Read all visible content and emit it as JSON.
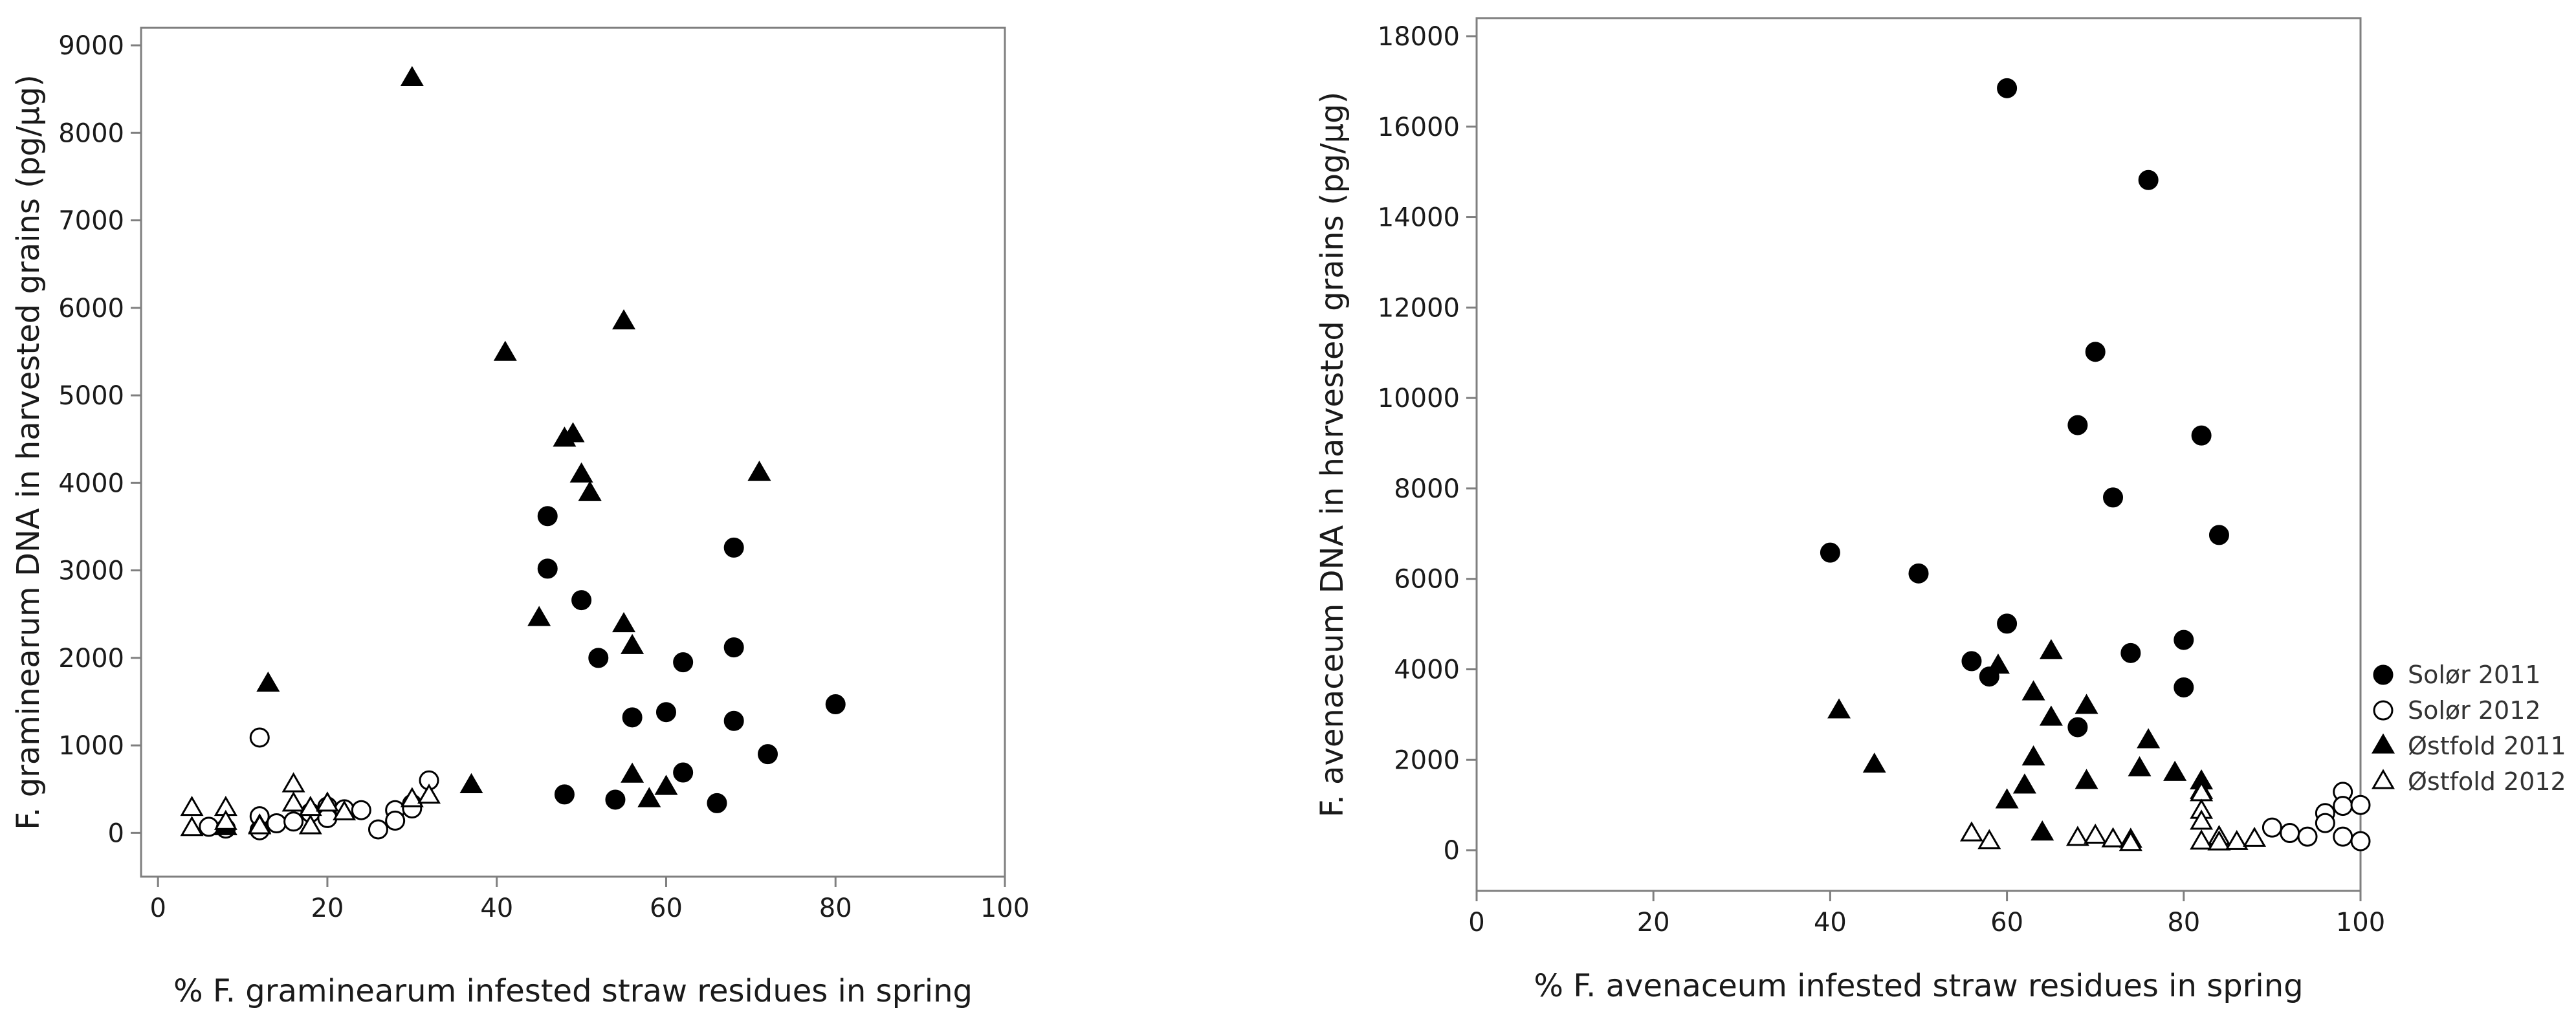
{
  "legend": {
    "items": [
      {
        "label": "Solør 2011",
        "marker": "circle",
        "filled": true
      },
      {
        "label": "Solør 2012",
        "marker": "circle",
        "filled": false
      },
      {
        "label": "Østfold 2011",
        "marker": "triangle",
        "filled": true
      },
      {
        "label": "Østfold 2012",
        "marker": "triangle",
        "filled": false
      }
    ]
  },
  "colors": {
    "marker": "#000000",
    "axis": "#7f7f7f",
    "text": "#1a1a1a",
    "background": "#ffffff"
  },
  "chart_data": [
    {
      "type": "scatter",
      "xlabel": "% F. graminearum infested straw residues in spring",
      "ylabel": "F. graminearum DNA in harvested grains (pg/µg)",
      "xlim": [
        -2,
        100
      ],
      "ylim": [
        -500,
        9200
      ],
      "xticks": [
        0,
        20,
        40,
        60,
        80,
        100
      ],
      "yticks": [
        0,
        1000,
        2000,
        3000,
        4000,
        5000,
        6000,
        7000,
        8000,
        9000
      ],
      "grid": false,
      "series": [
        {
          "name": "Solør 2011",
          "marker": "circle",
          "filled": true,
          "points": [
            [
              46,
              3620
            ],
            [
              46,
              3020
            ],
            [
              50,
              2660
            ],
            [
              52,
              2000
            ],
            [
              56,
              1320
            ],
            [
              60,
              1380
            ],
            [
              62,
              1950
            ],
            [
              68,
              3260
            ],
            [
              68,
              2120
            ],
            [
              68,
              1280
            ],
            [
              48,
              440
            ],
            [
              54,
              380
            ],
            [
              62,
              690
            ],
            [
              66,
              340
            ],
            [
              72,
              900
            ],
            [
              80,
              1470
            ]
          ]
        },
        {
          "name": "Solør 2012",
          "marker": "circle",
          "filled": false,
          "points": [
            [
              12,
              1090
            ],
            [
              12,
              190
            ],
            [
              12,
              30
            ],
            [
              14,
              110
            ],
            [
              16,
              130
            ],
            [
              18,
              230
            ],
            [
              20,
              300
            ],
            [
              20,
              170
            ],
            [
              22,
              270
            ],
            [
              24,
              260
            ],
            [
              26,
              40
            ],
            [
              28,
              260
            ],
            [
              28,
              140
            ],
            [
              30,
              330
            ],
            [
              30,
              280
            ],
            [
              32,
              600
            ],
            [
              6,
              70
            ],
            [
              8,
              50
            ]
          ]
        },
        {
          "name": "Østfold 2011",
          "marker": "triangle",
          "filled": true,
          "points": [
            [
              30,
              8620
            ],
            [
              41,
              5480
            ],
            [
              55,
              5840
            ],
            [
              48,
              4500
            ],
            [
              49,
              4550
            ],
            [
              50,
              4090
            ],
            [
              51,
              3880
            ],
            [
              45,
              2450
            ],
            [
              55,
              2380
            ],
            [
              56,
              2130
            ],
            [
              71,
              4110
            ],
            [
              13,
              1700
            ],
            [
              37,
              540
            ],
            [
              56,
              660
            ],
            [
              58,
              380
            ],
            [
              60,
              520
            ],
            [
              12,
              80
            ],
            [
              8,
              60
            ]
          ]
        },
        {
          "name": "Østfold 2012",
          "marker": "triangle",
          "filled": false,
          "points": [
            [
              4,
              280
            ],
            [
              4,
              50
            ],
            [
              8,
              280
            ],
            [
              8,
              120
            ],
            [
              12,
              70
            ],
            [
              16,
              550
            ],
            [
              16,
              330
            ],
            [
              18,
              280
            ],
            [
              18,
              70
            ],
            [
              20,
              330
            ],
            [
              22,
              230
            ],
            [
              30,
              380
            ],
            [
              32,
              420
            ]
          ]
        }
      ]
    },
    {
      "type": "scatter",
      "xlabel": "% F. avenaceum infested straw residues in spring",
      "ylabel": "F. avenaceum DNA in harvested grains (pg/µg)",
      "xlim": [
        0,
        100
      ],
      "ylim": [
        -900,
        18400
      ],
      "xticks": [
        0,
        20,
        40,
        60,
        80,
        100
      ],
      "yticks": [
        0,
        2000,
        4000,
        6000,
        8000,
        10000,
        12000,
        14000,
        16000,
        18000
      ],
      "grid": false,
      "series": [
        {
          "name": "Solør 2011",
          "marker": "circle",
          "filled": true,
          "points": [
            [
              60,
              16850
            ],
            [
              76,
              14820
            ],
            [
              70,
              11020
            ],
            [
              68,
              9400
            ],
            [
              82,
              9170
            ],
            [
              72,
              7800
            ],
            [
              84,
              6970
            ],
            [
              40,
              6580
            ],
            [
              50,
              6120
            ],
            [
              60,
              5010
            ],
            [
              80,
              4650
            ],
            [
              74,
              4360
            ],
            [
              56,
              4180
            ],
            [
              58,
              3840
            ],
            [
              80,
              3600
            ],
            [
              68,
              2720
            ]
          ]
        },
        {
          "name": "Solør 2012",
          "marker": "circle",
          "filled": false,
          "points": [
            [
              90,
              500
            ],
            [
              92,
              380
            ],
            [
              94,
              300
            ],
            [
              96,
              820
            ],
            [
              96,
              600
            ],
            [
              98,
              1290
            ],
            [
              98,
              980
            ],
            [
              98,
              300
            ],
            [
              100,
              1000
            ],
            [
              100,
              200
            ]
          ]
        },
        {
          "name": "Østfold 2011",
          "marker": "triangle",
          "filled": true,
          "points": [
            [
              41,
              3080
            ],
            [
              45,
              1880
            ],
            [
              59,
              4070
            ],
            [
              60,
              1090
            ],
            [
              62,
              1420
            ],
            [
              63,
              3480
            ],
            [
              63,
              2040
            ],
            [
              64,
              380
            ],
            [
              65,
              4390
            ],
            [
              65,
              2920
            ],
            [
              69,
              3180
            ],
            [
              69,
              1520
            ],
            [
              75,
              1800
            ],
            [
              76,
              2420
            ],
            [
              79,
              1700
            ],
            [
              82,
              1510
            ],
            [
              82,
              1300
            ]
          ]
        },
        {
          "name": "Østfold 2012",
          "marker": "triangle",
          "filled": false,
          "points": [
            [
              56,
              360
            ],
            [
              58,
              190
            ],
            [
              68,
              260
            ],
            [
              70,
              310
            ],
            [
              72,
              230
            ],
            [
              74,
              220
            ],
            [
              74,
              150
            ],
            [
              82,
              1250
            ],
            [
              82,
              860
            ],
            [
              82,
              620
            ],
            [
              82,
              180
            ],
            [
              84,
              280
            ],
            [
              84,
              160
            ],
            [
              86,
              170
            ],
            [
              88,
              240
            ]
          ]
        }
      ]
    }
  ]
}
